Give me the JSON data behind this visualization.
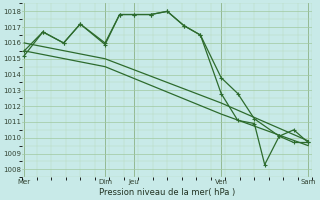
{
  "background_color": "#c8eae8",
  "grid_color_major": "#a0c8a0",
  "grid_color_minor": "#b8d8b8",
  "line_color": "#2d6b2d",
  "title": "Pression niveau de la mer( hPa )",
  "ylim": [
    1007.5,
    1018.5
  ],
  "yticks": [
    1008,
    1009,
    1010,
    1011,
    1012,
    1013,
    1014,
    1015,
    1016,
    1017,
    1018
  ],
  "xlim": [
    0,
    7.0
  ],
  "xtick_positions": [
    0.05,
    2.0,
    2.7,
    4.8,
    6.9
  ],
  "xtick_labels": [
    "Mer",
    "Dim",
    "Jeu",
    "Ven",
    "Sam"
  ],
  "vline_positions": [
    0.05,
    2.0,
    2.7,
    4.8,
    6.9
  ],
  "s1_with_markers": {
    "x": [
      0.05,
      0.5,
      1.0,
      1.4,
      2.0,
      2.35,
      2.7,
      3.1,
      3.5,
      3.9,
      4.3,
      4.8,
      5.2,
      5.6,
      5.85,
      6.2,
      6.55,
      6.9
    ],
    "y": [
      1015.2,
      1016.7,
      1016.0,
      1017.2,
      1016.0,
      1017.8,
      1017.8,
      1017.8,
      1018.0,
      1017.1,
      1016.5,
      1012.8,
      1011.1,
      1010.9,
      1008.3,
      1010.1,
      1009.7,
      1009.7
    ]
  },
  "s2_smooth_high": {
    "x": [
      0.05,
      0.5,
      1.0,
      1.4,
      2.0,
      2.35,
      2.7,
      3.1,
      3.5,
      3.9,
      4.3,
      4.8,
      5.2,
      5.6,
      6.2,
      6.55,
      6.9
    ],
    "y": [
      1015.5,
      1016.7,
      1016.0,
      1017.2,
      1015.9,
      1017.8,
      1017.8,
      1017.8,
      1018.0,
      1017.1,
      1016.5,
      1013.8,
      1012.8,
      1011.2,
      1010.1,
      1010.5,
      1009.7
    ]
  },
  "s3_diagonal": {
    "x": [
      0.05,
      2.0,
      4.8,
      6.9
    ],
    "y": [
      1016.0,
      1015.0,
      1012.2,
      1009.8
    ]
  },
  "s4_diagonal2": {
    "x": [
      0.05,
      2.0,
      4.8,
      6.9
    ],
    "y": [
      1015.5,
      1014.5,
      1011.5,
      1009.5
    ]
  }
}
